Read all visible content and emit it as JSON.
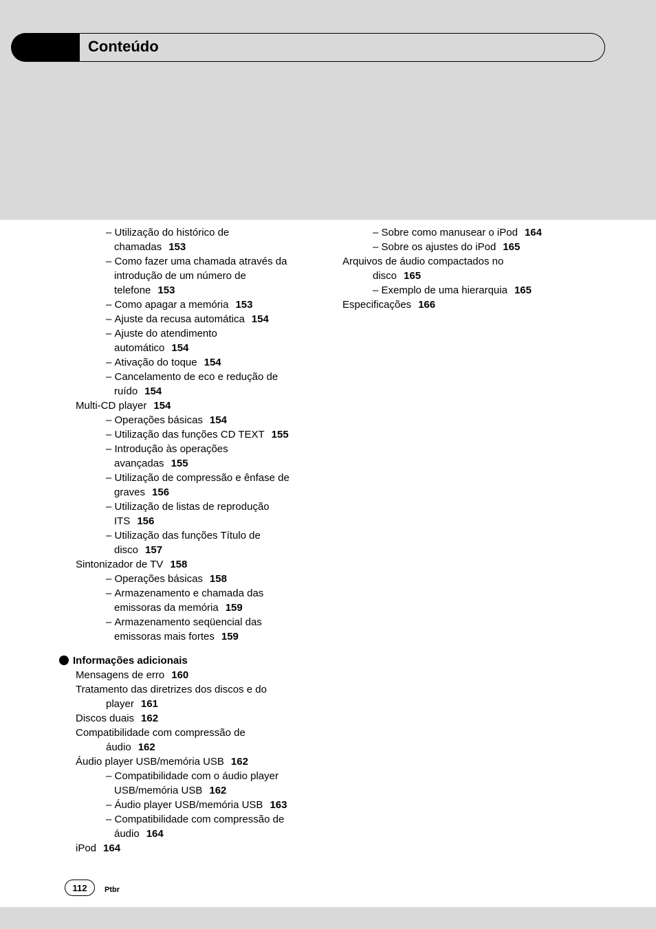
{
  "header": {
    "title": "Conteúdo"
  },
  "footer": {
    "page_number": "112",
    "lang": "Ptbr"
  },
  "left_items": [
    {
      "level": 2,
      "dash": true,
      "text": "Utilização do histórico de"
    },
    {
      "level": "cont2",
      "text": "chamadas",
      "page": "153"
    },
    {
      "level": 2,
      "dash": true,
      "text": "Como fazer uma chamada através da"
    },
    {
      "level": "cont2",
      "text": "introdução de um número de"
    },
    {
      "level": "cont2",
      "text": "telefone",
      "page": "153"
    },
    {
      "level": 2,
      "dash": true,
      "text": "Como apagar a memória",
      "page": "153"
    },
    {
      "level": 2,
      "dash": true,
      "text": "Ajuste da recusa automática",
      "page": "154"
    },
    {
      "level": 2,
      "dash": true,
      "text": "Ajuste do atendimento"
    },
    {
      "level": "cont2",
      "text": "automático",
      "page": "154"
    },
    {
      "level": 2,
      "dash": true,
      "text": "Ativação do toque",
      "page": "154"
    },
    {
      "level": 2,
      "dash": true,
      "text": "Cancelamento de eco e redução de"
    },
    {
      "level": "cont2",
      "text": "ruído",
      "page": "154"
    },
    {
      "level": 0,
      "text": "Multi-CD player",
      "page": "154"
    },
    {
      "level": 2,
      "dash": true,
      "text": "Operações básicas",
      "page": "154"
    },
    {
      "level": 2,
      "dash": true,
      "text": "Utilização das funções CD TEXT",
      "page": "155"
    },
    {
      "level": 2,
      "dash": true,
      "text": "Introdução às operações"
    },
    {
      "level": "cont2",
      "text": "avançadas",
      "page": "155"
    },
    {
      "level": 2,
      "dash": true,
      "text": "Utilização de compressão e ênfase de"
    },
    {
      "level": "cont2",
      "text": "graves",
      "page": "156"
    },
    {
      "level": 2,
      "dash": true,
      "text": "Utilização de listas de reprodução"
    },
    {
      "level": "cont2",
      "text": "ITS",
      "page": "156"
    },
    {
      "level": 2,
      "dash": true,
      "text": "Utilização das funções Título de"
    },
    {
      "level": "cont2",
      "text": "disco",
      "page": "157"
    },
    {
      "level": 0,
      "text": "Sintonizador de TV",
      "page": "158"
    },
    {
      "level": 2,
      "dash": true,
      "text": "Operações básicas",
      "page": "158"
    },
    {
      "level": 2,
      "dash": true,
      "text": "Armazenamento e chamada das"
    },
    {
      "level": "cont2",
      "text": "emissoras da memória",
      "page": "159"
    },
    {
      "level": 2,
      "dash": true,
      "text": "Armazenamento seqüencial das"
    },
    {
      "level": "cont2",
      "text": "emissoras mais fortes",
      "page": "159"
    }
  ],
  "section_break": {
    "heading": "Informações adicionais"
  },
  "left_items2": [
    {
      "level": 0,
      "text": "Mensagens de erro",
      "page": "160"
    },
    {
      "level": 0,
      "text": "Tratamento das diretrizes dos discos e do"
    },
    {
      "level": "cont1",
      "text": "player",
      "page": "161"
    },
    {
      "level": 0,
      "text": "Discos duais",
      "page": "162"
    },
    {
      "level": 0,
      "text": "Compatibilidade com compressão de"
    },
    {
      "level": "cont1",
      "text": "áudio",
      "page": "162"
    },
    {
      "level": 0,
      "text": "Áudio player USB/memória USB",
      "page": "162"
    },
    {
      "level": 2,
      "dash": true,
      "text": "Compatibilidade com o áudio player"
    },
    {
      "level": "cont2",
      "text": "USB/memória USB",
      "page": "162"
    },
    {
      "level": 2,
      "dash": true,
      "text": "Áudio player USB/memória USB",
      "page": "163"
    },
    {
      "level": 2,
      "dash": true,
      "text": "Compatibilidade com compressão de"
    },
    {
      "level": "cont2",
      "text": "áudio",
      "page": "164"
    },
    {
      "level": 0,
      "text": "iPod",
      "page": "164"
    }
  ],
  "right_items": [
    {
      "level": 2,
      "dash": true,
      "text": "Sobre como manusear o iPod",
      "page": "164"
    },
    {
      "level": 2,
      "dash": true,
      "text": "Sobre os ajustes do iPod",
      "page": "165"
    },
    {
      "level": 0,
      "text": "Arquivos de áudio compactados no"
    },
    {
      "level": "cont1",
      "text": "disco",
      "page": "165"
    },
    {
      "level": 2,
      "dash": true,
      "text": "Exemplo de uma hierarquia",
      "page": "165"
    },
    {
      "level": 0,
      "text": "Especificações",
      "page": "166"
    }
  ]
}
